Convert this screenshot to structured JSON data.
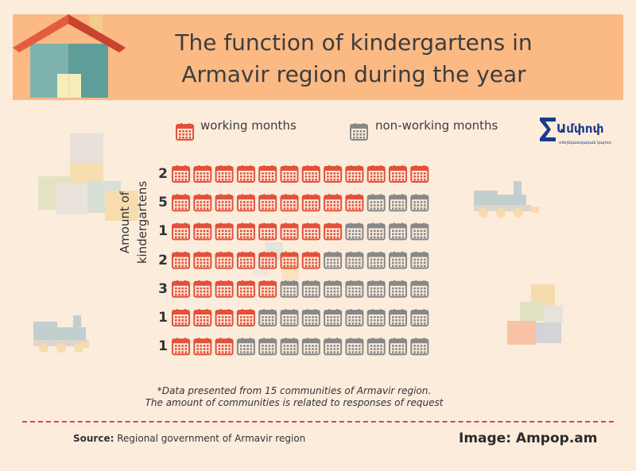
{
  "title": "The function of kindergartens in Armavir region during the year",
  "legend": {
    "working": "working months",
    "non_working": "non-working months"
  },
  "logo": {
    "text": "Ամփոփ",
    "subtext": "տեղեկատվական կայուռ"
  },
  "colors": {
    "header": "#fbb984",
    "background": "#fcecdc",
    "working": "#e4503a",
    "non_working": "#888888",
    "divider": "#e0443a"
  },
  "icons": {
    "calendar": "calendar-icon",
    "house": "house-icon",
    "train": "toy-train-icon",
    "blocks": "toy-blocks-icon",
    "logo": "sigma-logo-icon"
  },
  "chart_data": {
    "type": "table",
    "ylabel": "Amount of kindergartens",
    "months_per_row": 12,
    "rows": [
      {
        "kindergartens": 2,
        "working_months": 12
      },
      {
        "kindergartens": 5,
        "working_months": 9
      },
      {
        "kindergartens": 1,
        "working_months": 8
      },
      {
        "kindergartens": 2,
        "working_months": 7
      },
      {
        "kindergartens": 3,
        "working_months": 5
      },
      {
        "kindergartens": 1,
        "working_months": 4
      },
      {
        "kindergartens": 1,
        "working_months": 3
      }
    ]
  },
  "footnote": {
    "line1": "*Data presented from 15 communities of Armavir region.",
    "line2": "The amount of communities  is related to responses of request"
  },
  "source": {
    "label": "Source:",
    "text": " Regional government of Armavir region"
  },
  "credit": "Image: Ampop.am"
}
